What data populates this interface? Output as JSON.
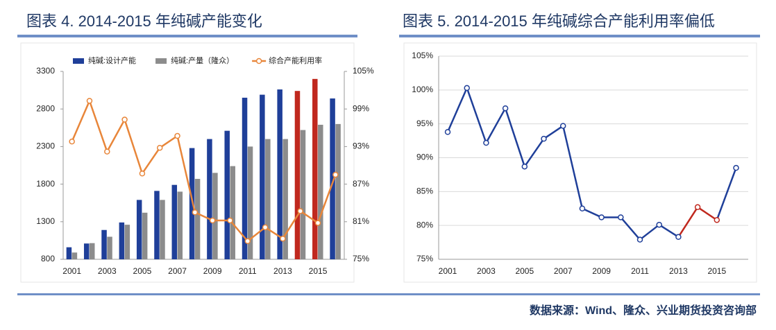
{
  "chart_data": [
    {
      "type": "bar",
      "title": "图表 4. 2014-2015 年纯碱产能变化",
      "categories": [
        "2001",
        null,
        "2003",
        null,
        "2005",
        null,
        "2007",
        null,
        "2009",
        null,
        "2011",
        null,
        "2013",
        null,
        "2015",
        null
      ],
      "ylim": [
        800,
        3300
      ],
      "yticks": [
        800,
        1300,
        1800,
        2300,
        2800,
        3300
      ],
      "y2lim": [
        75,
        105
      ],
      "y2ticks": [
        {
          "value": 75,
          "label": "75%"
        },
        {
          "value": 81,
          "label": "81%"
        },
        {
          "value": 87,
          "label": "87%"
        },
        {
          "value": 93,
          "label": "93%"
        },
        {
          "value": 99,
          "label": "99%"
        },
        {
          "value": 105,
          "label": "105%"
        }
      ],
      "legend": "top",
      "grid": false,
      "series": [
        {
          "name": "纯碱:设计产能",
          "color": "#1f3f99",
          "colors": [
            "#1f3f99",
            "#1f3f99",
            "#1f3f99",
            "#1f3f99",
            "#1f3f99",
            "#1f3f99",
            "#1f3f99",
            "#1f3f99",
            "#1f3f99",
            "#1f3f99",
            "#1f3f99",
            "#1f3f99",
            "#1f3f99",
            "#c0281e",
            "#c0281e",
            "#1f3f99"
          ],
          "values": [
            960,
            1010,
            1190,
            1290,
            1590,
            1710,
            1790,
            2280,
            2400,
            2510,
            2950,
            2990,
            3060,
            3040,
            3200,
            2940
          ]
        },
        {
          "name": "纯碱:产量（隆众）",
          "color": "#8c8c8c",
          "values": [
            890,
            1015,
            1100,
            1260,
            1420,
            1590,
            1700,
            1870,
            1950,
            2040,
            2300,
            2400,
            2400,
            2520,
            2590,
            2600
          ]
        },
        {
          "name": "综合产能利用率",
          "color": "#e8863a",
          "axis": "y2",
          "type": "line",
          "values": [
            93.8,
            100.3,
            92.2,
            97.3,
            88.7,
            92.8,
            94.7,
            82.5,
            81.2,
            81.2,
            77.9,
            80.1,
            78.3,
            82.7,
            80.8,
            88.5
          ]
        }
      ]
    },
    {
      "type": "line",
      "title": "图表 5. 2014-2015 年纯碱综合产能利用率偏低",
      "categories": [
        "2001",
        null,
        "2003",
        null,
        "2005",
        null,
        "2007",
        null,
        "2009",
        null,
        "2011",
        null,
        "2013",
        null,
        "2015",
        null
      ],
      "ylim": [
        75,
        105
      ],
      "yticks": [
        {
          "value": 75,
          "label": "75%"
        },
        {
          "value": 80,
          "label": "80%"
        },
        {
          "value": 85,
          "label": "85%"
        },
        {
          "value": 90,
          "label": "90%"
        },
        {
          "value": 95,
          "label": "95%"
        },
        {
          "value": 100,
          "label": "100%"
        },
        {
          "value": 105,
          "label": "105%"
        }
      ],
      "grid": true,
      "series": [
        {
          "color": "#1f3f99",
          "segment_colors": [
            "#1f3f99",
            "#1f3f99",
            "#1f3f99",
            "#1f3f99",
            "#1f3f99",
            "#1f3f99",
            "#1f3f99",
            "#1f3f99",
            "#1f3f99",
            "#1f3f99",
            "#1f3f99",
            "#1f3f99",
            "#c0281e",
            "#c0281e",
            "#1f3f99"
          ],
          "marker_colors": [
            "#1f3f99",
            "#1f3f99",
            "#1f3f99",
            "#1f3f99",
            "#1f3f99",
            "#1f3f99",
            "#1f3f99",
            "#1f3f99",
            "#1f3f99",
            "#1f3f99",
            "#1f3f99",
            "#1f3f99",
            "#1f3f99",
            "#c0281e",
            "#c0281e",
            "#1f3f99"
          ],
          "values": [
            93.8,
            100.3,
            92.2,
            97.3,
            88.7,
            92.8,
            94.7,
            82.5,
            81.2,
            81.2,
            77.9,
            80.1,
            78.3,
            82.7,
            80.8,
            88.5
          ]
        }
      ]
    }
  ],
  "source": "数据来源：Wind、隆众、兴业期货投资咨询部"
}
